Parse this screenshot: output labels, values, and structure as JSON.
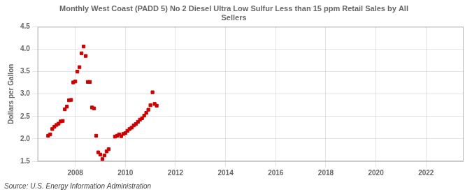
{
  "chart_data": {
    "type": "scatter",
    "title": "Monthly West Coast (PADD 5) No 2 Diesel Ultra Low Sulfur Less than 15 ppm Retail Sales by All\nSellers",
    "ylabel": "Dollars per Gallon",
    "annotations": [
      "Source: U.S. Energy Information Administration"
    ],
    "color": "#cc0000",
    "marker": "square",
    "grid": true,
    "xlim": [
      2006.5,
      2023.5
    ],
    "xticks": [
      2008,
      2010,
      2012,
      2014,
      2016,
      2018,
      2020,
      2022
    ],
    "ylim": [
      1.5,
      4.5
    ],
    "yticks": [
      1.5,
      {
        "value": 2.0,
        "label": "2.0"
      },
      2.5,
      {
        "value": 3.0,
        "label": "3.0"
      },
      3.5,
      {
        "value": 4.0,
        "label": "4.0"
      },
      4.5
    ],
    "x": [
      2006.917,
      2007.0,
      2007.083,
      2007.167,
      2007.25,
      2007.333,
      2007.417,
      2007.5,
      2007.583,
      2007.667,
      2007.75,
      2007.833,
      2007.917,
      2008.0,
      2008.083,
      2008.167,
      2008.25,
      2008.333,
      2008.417,
      2008.5,
      2008.583,
      2008.667,
      2008.75,
      2008.833,
      2008.917,
      2009.0,
      2009.083,
      2009.167,
      2009.25,
      2009.333,
      2009.583,
      2009.667,
      2009.75,
      2009.833,
      2009.917,
      2010.0,
      2010.083,
      2010.167,
      2010.25,
      2010.333,
      2010.417,
      2010.5,
      2010.583,
      2010.667,
      2010.75,
      2010.833,
      2010.917,
      2011.0,
      2011.083,
      2011.167,
      2011.25
    ],
    "values": [
      2.07,
      2.1,
      2.22,
      2.27,
      2.31,
      2.34,
      2.39,
      2.4,
      2.66,
      2.72,
      2.86,
      2.87,
      3.26,
      3.28,
      3.5,
      3.6,
      3.91,
      4.06,
      3.85,
      3.27,
      3.27,
      2.7,
      2.68,
      2.07,
      1.7,
      1.65,
      1.55,
      1.63,
      1.72,
      1.77,
      2.05,
      2.07,
      2.1,
      2.06,
      2.11,
      2.13,
      2.18,
      2.22,
      2.25,
      2.3,
      2.33,
      2.38,
      2.43,
      2.46,
      2.52,
      2.58,
      2.65,
      2.75,
      3.04,
      2.78,
      2.74
    ]
  }
}
